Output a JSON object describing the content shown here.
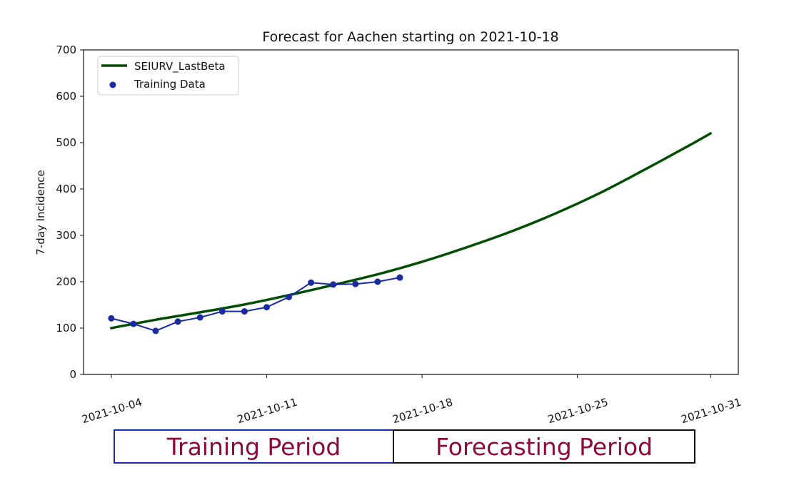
{
  "chart_data": {
    "type": "line",
    "title": "Forecast for Aachen starting on 2021-10-18",
    "xlabel": "",
    "ylabel": "7-day Incidence",
    "ylim": [
      0,
      700
    ],
    "yticks": [
      0,
      100,
      200,
      300,
      400,
      500,
      600,
      700
    ],
    "xticks": [
      "2021-10-04",
      "2021-10-11",
      "2021-10-18",
      "2021-10-25",
      "2021-10-31"
    ],
    "xlim": [
      "2021-10-02 18:00",
      "2021-11-01 06:00"
    ],
    "grid": false,
    "legend_position": "top-left",
    "series": [
      {
        "name": "SEIURV_LastBeta",
        "kind": "line",
        "color": "#004d00",
        "x": [
          "2021-10-04",
          "2021-10-06",
          "2021-10-08",
          "2021-10-10",
          "2021-10-12",
          "2021-10-14",
          "2021-10-16",
          "2021-10-18",
          "2021-10-20",
          "2021-10-22",
          "2021-10-24",
          "2021-10-26",
          "2021-10-28",
          "2021-10-30",
          "2021-10-31"
        ],
        "values": [
          100,
          118,
          134,
          151,
          171,
          193,
          216,
          243,
          274,
          308,
          347,
          391,
          441,
          493,
          520
        ]
      },
      {
        "name": "Training Data",
        "kind": "scatter-line",
        "color": "#1a2aa0",
        "x": [
          "2021-10-04",
          "2021-10-05",
          "2021-10-06",
          "2021-10-07",
          "2021-10-08",
          "2021-10-09",
          "2021-10-10",
          "2021-10-11",
          "2021-10-12",
          "2021-10-13",
          "2021-10-14",
          "2021-10-15",
          "2021-10-16",
          "2021-10-17"
        ],
        "values": [
          121,
          109,
          94,
          114,
          123,
          136,
          136,
          145,
          167,
          198,
          194,
          195,
          200,
          209
        ]
      }
    ]
  },
  "periods": {
    "training": "Training Period",
    "forecasting": "Forecasting Period",
    "text_color": "#8b0a3c"
  }
}
